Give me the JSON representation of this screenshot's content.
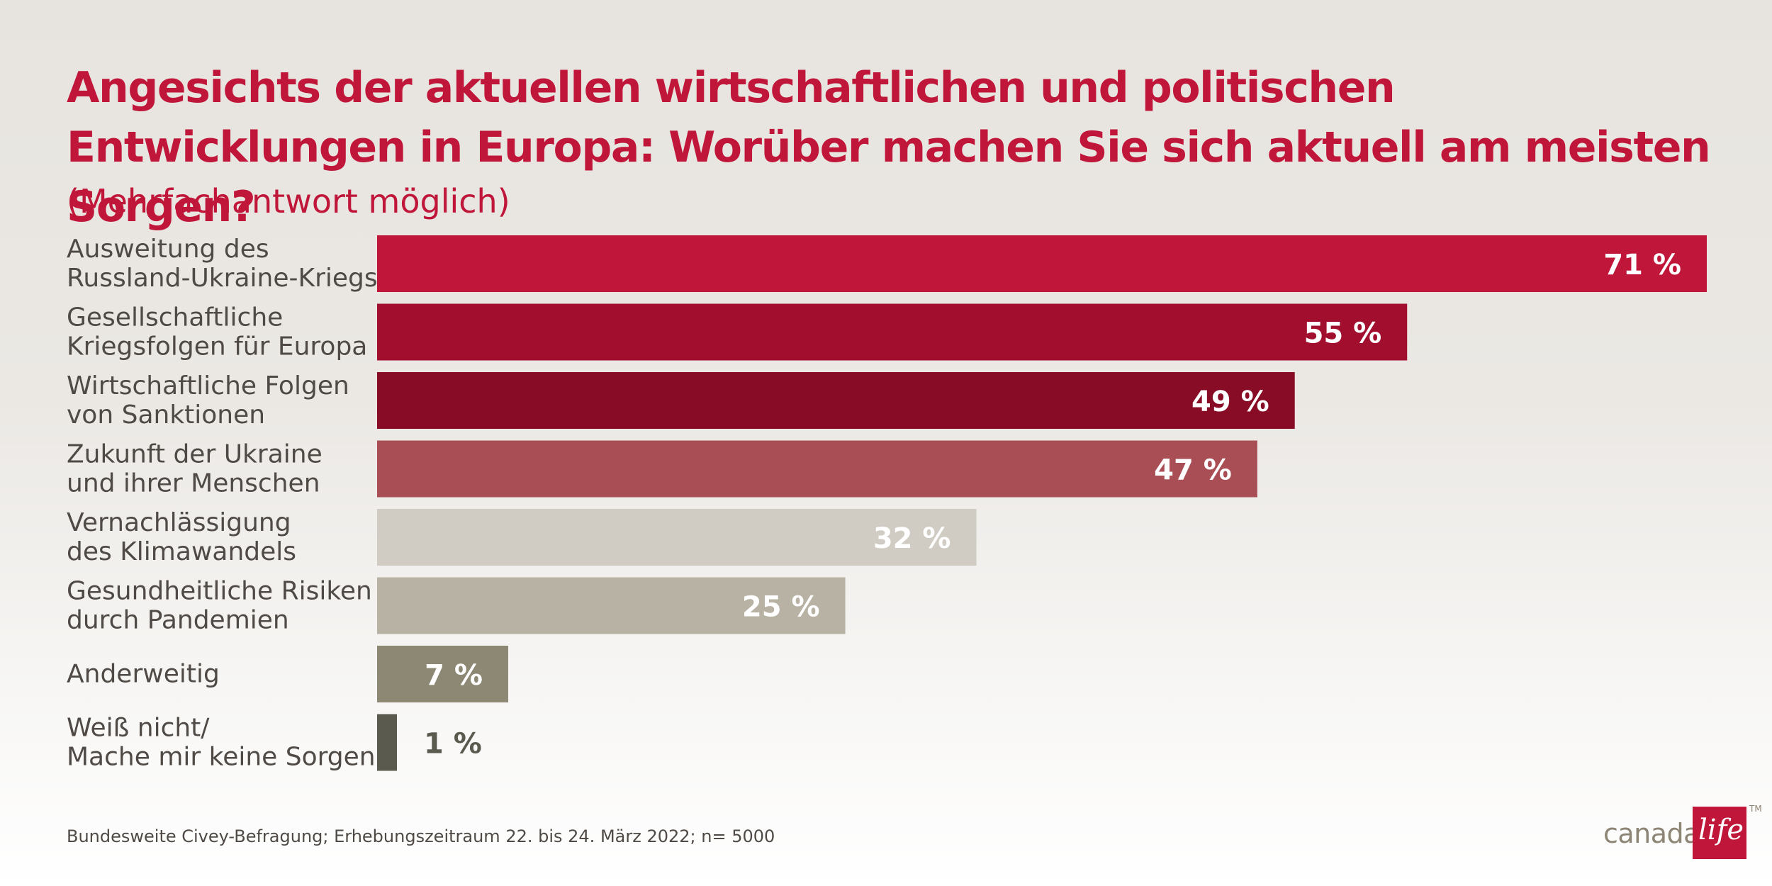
{
  "title": "Angesichts der aktuellen wirtschaftlichen und politischen Entwicklungen in Europa: Worüber machen Sie sich aktuell am meisten Sorgen?",
  "subtitle": "(Mehrfachantwort möglich)",
  "footnote": "Bundesweite Civey-Befragung; Erhebungszeitraum 22. bis 24. März 2022; n= 5000",
  "logo": {
    "text": "canada",
    "script": "life",
    "tm": "TM"
  },
  "chart_data": {
    "type": "bar",
    "orientation": "horizontal",
    "unit": "%",
    "categories": [
      [
        "Ausweitung des",
        "Russland-Ukraine-Kriegs"
      ],
      [
        "Gesellschaftliche",
        "Kriegsfolgen für Europa"
      ],
      [
        "Wirtschaftliche Folgen",
        "von Sanktionen"
      ],
      [
        "Zukunft der Ukraine",
        "und ihrer Menschen"
      ],
      [
        "Vernachlässigung",
        "des Klimawandels"
      ],
      [
        "Gesundheitliche Risiken",
        "durch Pandemien"
      ],
      [
        "Anderweitig"
      ],
      [
        "Weiß nicht/",
        "Mache mir keine Sorgen"
      ]
    ],
    "values": [
      71,
      55,
      49,
      47,
      32,
      25,
      7,
      1
    ],
    "value_labels": [
      "71 %",
      "55 %",
      "49 %",
      "47 %",
      "32 %",
      "25 %",
      "7 %",
      "1 %"
    ],
    "colors": [
      "#c0163a",
      "#a20f2e",
      "#890c27",
      "#a94e55",
      "#d0ccc4",
      "#b8b2a4",
      "#8c8874",
      "#5b5a4e"
    ],
    "label_colors": [
      "#ffffff",
      "#ffffff",
      "#ffffff",
      "#ffffff",
      "#ffffff",
      "#ffffff",
      "#ffffff",
      "#5b5a4e"
    ],
    "xlim": [
      0,
      71
    ]
  }
}
